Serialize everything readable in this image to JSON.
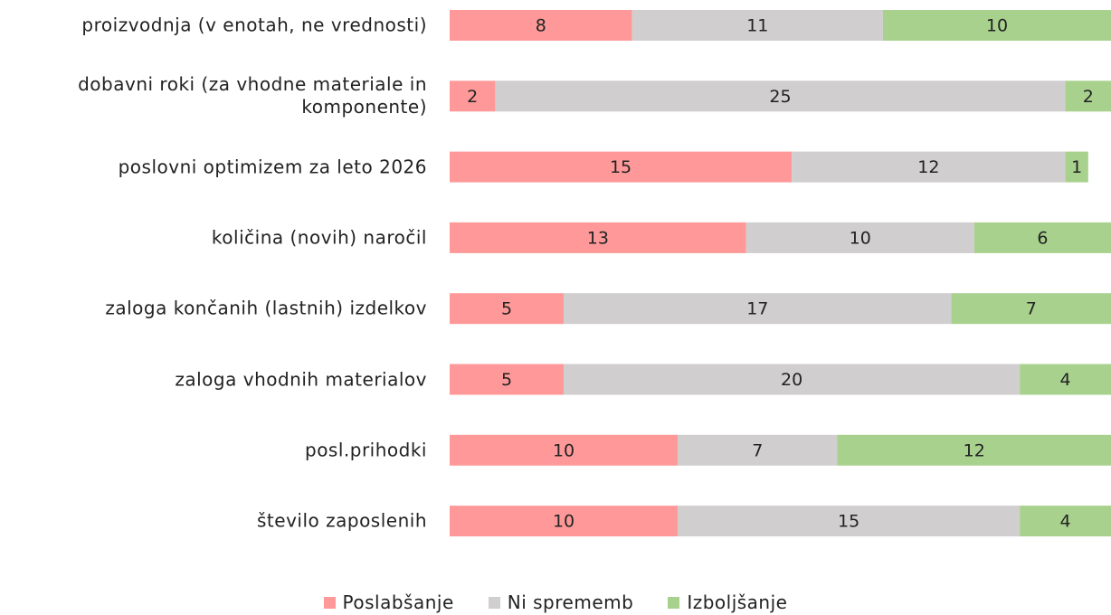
{
  "chart_data": {
    "type": "stacked-bar-horizontal",
    "categories": [
      "proizvodnja (v enotah, ne vrednosti)",
      "dobavni roki (za vhodne materiale in komponente)",
      "poslovni optimizem za leto 2026",
      "količina (novih) naročil",
      "zaloga končanih (lastnih) izdelkov",
      "zaloga vhodnih materialov",
      "posl.prihodki",
      "število zaposlenih"
    ],
    "series": [
      {
        "name": "Poslabšanje",
        "color": "#ff9999",
        "values": [
          8,
          2,
          15,
          13,
          5,
          5,
          10,
          10
        ]
      },
      {
        "name": "Ni sprememb",
        "color": "#d0cece",
        "values": [
          11,
          25,
          12,
          10,
          17,
          20,
          7,
          15
        ]
      },
      {
        "name": "Izboljšanje",
        "color": "#a9d18e",
        "values": [
          10,
          2,
          1,
          6,
          7,
          4,
          12,
          4
        ]
      }
    ],
    "legend": "bottom"
  }
}
